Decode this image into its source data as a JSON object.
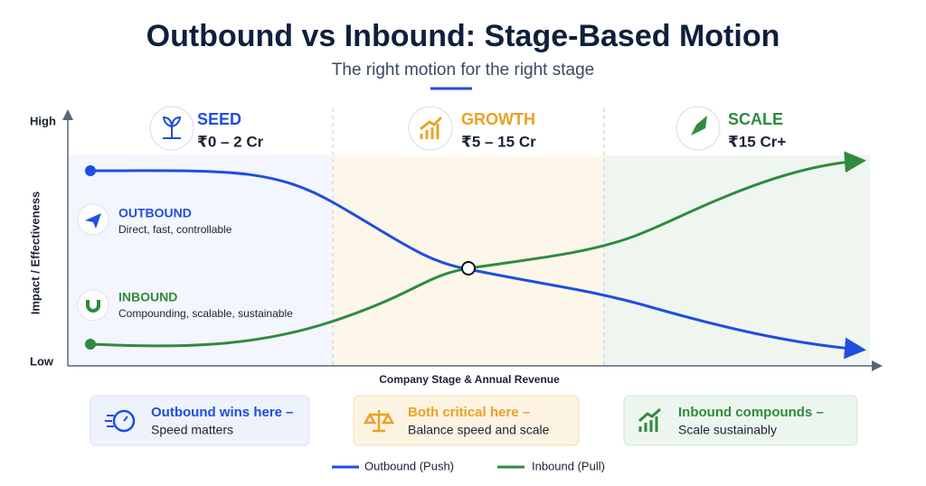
{
  "header": {
    "title": "Outbound vs Inbound: Stage-Based Motion",
    "subtitle": "The right motion for the right stage"
  },
  "axes": {
    "y_label": "Impact / Effectiveness",
    "y_high": "High",
    "y_low": "Low",
    "x_label": "Company Stage & Annual Revenue"
  },
  "stages": [
    {
      "name": "SEED",
      "range": "₹0 – 2 Cr"
    },
    {
      "name": "GROWTH",
      "range": "₹5 – 15 Cr"
    },
    {
      "name": "SCALE",
      "range": "₹15 Cr+"
    }
  ],
  "callouts": [
    {
      "title": "OUTBOUND",
      "text": "Direct, fast, controllable"
    },
    {
      "title": "INBOUND",
      "text": "Compounding, scalable, sustainable"
    }
  ],
  "notes": [
    {
      "title": "Outbound wins here –",
      "text": "Speed matters"
    },
    {
      "title": "Both critical here –",
      "text": "Balance speed and scale"
    },
    {
      "title": "Inbound compounds –",
      "text": "Scale sustainably"
    }
  ],
  "legend": [
    "Outbound (Push)",
    "Inbound (Pull)"
  ]
}
